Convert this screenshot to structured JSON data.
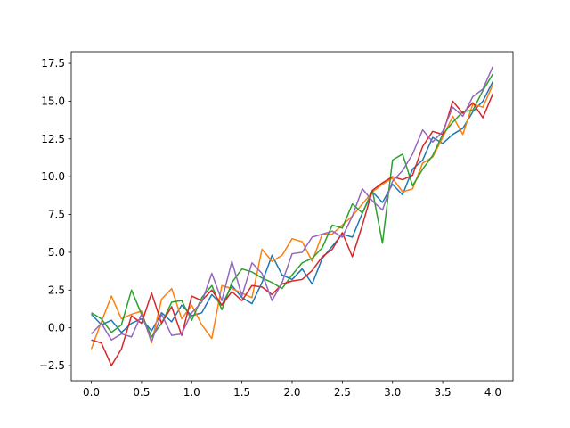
{
  "chart_data": {
    "type": "line",
    "x": [
      0,
      0.1,
      0.2,
      0.3,
      0.4,
      0.5,
      0.6,
      0.7,
      0.8,
      0.9,
      1,
      1.1,
      1.2,
      1.3,
      1.4,
      1.5,
      1.6,
      1.7,
      1.8,
      1.9,
      2,
      2.1,
      2.2,
      2.3,
      2.4,
      2.5,
      2.6,
      2.7,
      2.8,
      2.9,
      3,
      3.1,
      3.2,
      3.3,
      3.4,
      3.5,
      3.6,
      3.7,
      3.8,
      3.9,
      4
    ],
    "series": [
      {
        "color": "#1f77b4",
        "values": [
          0.9,
          0.2,
          0.5,
          -0.3,
          0.3,
          0.6,
          -0.2,
          1.0,
          0.4,
          1.5,
          0.8,
          1.0,
          2.2,
          1.5,
          2.8,
          2.0,
          1.6,
          3.0,
          4.8,
          3.5,
          3.2,
          3.9,
          2.9,
          4.6,
          5.4,
          6.2,
          6.0,
          7.6,
          9.0,
          8.3,
          9.5,
          8.8,
          10.5,
          11.1,
          12.6,
          12.2,
          12.8,
          13.2,
          14.3,
          15.0,
          16.3
        ]
      },
      {
        "color": "#ff7f0e",
        "values": [
          -1.4,
          0.4,
          2.1,
          0.6,
          0.9,
          1.1,
          -1.0,
          1.9,
          2.6,
          0.6,
          1.5,
          0.2,
          -0.7,
          2.8,
          2.6,
          2.3,
          2.0,
          5.2,
          4.4,
          4.8,
          5.9,
          5.7,
          4.4,
          6.2,
          6.2,
          6.8,
          7.4,
          8.2,
          9.0,
          9.5,
          9.9,
          9.0,
          9.2,
          10.9,
          11.3,
          12.6,
          14.0,
          12.8,
          14.8,
          14.6,
          16.1
        ]
      },
      {
        "color": "#2ca02c",
        "values": [
          1.0,
          0.6,
          -0.3,
          0.2,
          2.5,
          0.9,
          -0.6,
          0.3,
          1.7,
          1.8,
          0.5,
          2.0,
          2.8,
          1.2,
          3.0,
          3.9,
          3.7,
          3.3,
          3.0,
          2.6,
          3.5,
          4.3,
          4.6,
          5.3,
          6.8,
          6.6,
          8.2,
          7.6,
          9.1,
          5.6,
          11.1,
          11.5,
          9.4,
          10.5,
          11.4,
          12.8,
          13.6,
          14.3,
          14.4,
          15.7,
          16.8
        ]
      },
      {
        "color": "#d62728",
        "values": [
          -0.8,
          -1.0,
          -2.5,
          -1.4,
          0.8,
          0.3,
          2.3,
          0.3,
          1.4,
          -0.5,
          2.1,
          1.8,
          2.5,
          1.5,
          2.4,
          1.8,
          2.8,
          2.7,
          2.2,
          2.9,
          3.1,
          3.2,
          3.8,
          4.7,
          5.2,
          6.3,
          4.7,
          6.8,
          9.1,
          9.6,
          10.0,
          9.8,
          10.1,
          12.0,
          13.0,
          12.8,
          15.0,
          14.2,
          14.9,
          13.9,
          15.5
        ]
      },
      {
        "color": "#9467bd",
        "values": [
          -0.4,
          0.3,
          -0.8,
          -0.4,
          -0.6,
          0.9,
          -0.9,
          0.9,
          -0.5,
          -0.4,
          1.0,
          1.7,
          3.6,
          1.8,
          4.4,
          2.1,
          4.3,
          3.6,
          1.8,
          3.0,
          4.9,
          5.0,
          6.0,
          6.2,
          6.4,
          6.0,
          7.4,
          9.2,
          8.4,
          7.8,
          9.7,
          10.4,
          11.5,
          13.1,
          12.3,
          13.0,
          14.6,
          14.0,
          15.3,
          15.8,
          17.3
        ]
      }
    ],
    "xlim": [
      -0.2,
      4.2
    ],
    "ylim": [
      -3.5,
      18.27
    ],
    "xticks": [
      {
        "value": 0,
        "label": "0.0"
      },
      0.5,
      {
        "value": 1,
        "label": "1.0"
      },
      1.5,
      {
        "value": 2,
        "label": "2.0"
      },
      2.5,
      {
        "value": 3,
        "label": "3.0"
      },
      3.5,
      {
        "value": 4,
        "label": "4.0"
      }
    ],
    "yticks": [
      {
        "value": -2.5,
        "label": "−2.5"
      },
      {
        "value": 0,
        "label": "0.0"
      },
      2.5,
      {
        "value": 5,
        "label": "5.0"
      },
      7.5,
      {
        "value": 10,
        "label": "10.0"
      },
      12.5,
      {
        "value": 15,
        "label": "15.0"
      },
      17.5
    ]
  }
}
